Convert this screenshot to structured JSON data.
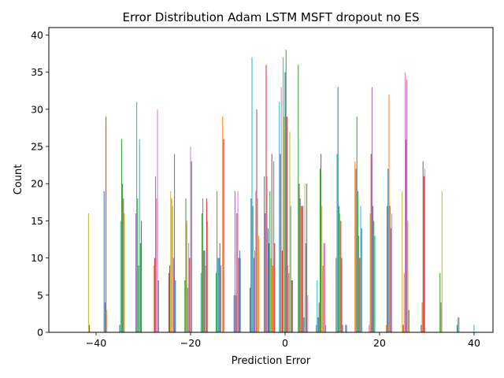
{
  "chart_data": {
    "type": "bar",
    "title": "Error Distribution  Adam LSTM MSFT dropout no ES",
    "xlabel": "Prediction Error",
    "ylabel": "Count",
    "xlim": [
      -50,
      44
    ],
    "ylim": [
      0,
      41
    ],
    "x_ticks": [
      -40,
      -20,
      0,
      20,
      40
    ],
    "x_tick_labels": [
      "−40",
      "−20",
      "0",
      "20",
      "40"
    ],
    "y_ticks": [
      0,
      5,
      10,
      15,
      20,
      25,
      30,
      35,
      40
    ],
    "y_tick_labels": [
      "0",
      "5",
      "10",
      "15",
      "20",
      "25",
      "30",
      "35",
      "40"
    ],
    "grid": false,
    "legend": "none",
    "bar_width": 0.16,
    "colors": [
      "#1f77b4",
      "#ff7f0e",
      "#2ca02c",
      "#d62728",
      "#9467bd",
      "#8c564b",
      "#e377c2",
      "#7f7f7f",
      "#bcbd22",
      "#17becf"
    ],
    "bars": [
      {
        "x": -41.6,
        "y": 16,
        "c": "#bcbd22"
      },
      {
        "x": -41.4,
        "y": 1,
        "c": "#d62728"
      },
      {
        "x": -38.3,
        "y": 19,
        "c": "#1f77b4"
      },
      {
        "x": -38.1,
        "y": 4,
        "c": "#7f7f7f"
      },
      {
        "x": -37.9,
        "y": 29,
        "c": "#8c564b"
      },
      {
        "x": -37.7,
        "y": 3,
        "c": "#bcbd22"
      },
      {
        "x": -35.0,
        "y": 1,
        "c": "#1f77b4"
      },
      {
        "x": -34.8,
        "y": 15,
        "c": "#17becf"
      },
      {
        "x": -34.6,
        "y": 26,
        "c": "#2ca02c"
      },
      {
        "x": -34.4,
        "y": 20,
        "c": "#2ca02c"
      },
      {
        "x": -34.2,
        "y": 18,
        "c": "#8c564b"
      },
      {
        "x": -34.0,
        "y": 16,
        "c": "#bcbd22"
      },
      {
        "x": -31.6,
        "y": 16,
        "c": "#9467bd"
      },
      {
        "x": -31.4,
        "y": 31,
        "c": "#17becf"
      },
      {
        "x": -31.2,
        "y": 18,
        "c": "#2ca02c"
      },
      {
        "x": -31.0,
        "y": 9,
        "c": "#7f7f7f"
      },
      {
        "x": -30.8,
        "y": 26,
        "c": "#17becf"
      },
      {
        "x": -30.6,
        "y": 12,
        "c": "#2ca02c"
      },
      {
        "x": -30.4,
        "y": 15,
        "c": "#1f77b4"
      },
      {
        "x": -27.8,
        "y": 9,
        "c": "#bcbd22"
      },
      {
        "x": -27.6,
        "y": 10,
        "c": "#d62728"
      },
      {
        "x": -27.4,
        "y": 21,
        "c": "#9467bd"
      },
      {
        "x": -27.2,
        "y": 18,
        "c": "#e377c2"
      },
      {
        "x": -27.0,
        "y": 30,
        "c": "#e377c2"
      },
      {
        "x": -26.8,
        "y": 7,
        "c": "#1f77b4"
      },
      {
        "x": -24.6,
        "y": 8,
        "c": "#8c564b"
      },
      {
        "x": -24.4,
        "y": 9,
        "c": "#d62728"
      },
      {
        "x": -24.2,
        "y": 19,
        "c": "#bcbd22"
      },
      {
        "x": -24.0,
        "y": 18,
        "c": "#ff7f0e"
      },
      {
        "x": -23.8,
        "y": 17,
        "c": "#bcbd22"
      },
      {
        "x": -23.6,
        "y": 10,
        "c": "#9467bd"
      },
      {
        "x": -23.4,
        "y": 24,
        "c": "#2ca02c"
      },
      {
        "x": -23.2,
        "y": 7,
        "c": "#1f77b4"
      },
      {
        "x": -21.2,
        "y": 7,
        "c": "#2ca02c"
      },
      {
        "x": -21.0,
        "y": 18,
        "c": "#2ca02c"
      },
      {
        "x": -20.8,
        "y": 15,
        "c": "#ff7f0e"
      },
      {
        "x": -20.6,
        "y": 6,
        "c": "#7f7f7f"
      },
      {
        "x": -20.4,
        "y": 12,
        "c": "#e377c2"
      },
      {
        "x": -20.2,
        "y": 10,
        "c": "#d62728"
      },
      {
        "x": -20.0,
        "y": 25,
        "c": "#e377c2"
      },
      {
        "x": -19.8,
        "y": 23,
        "c": "#1f77b4"
      },
      {
        "x": -17.8,
        "y": 8,
        "c": "#17becf"
      },
      {
        "x": -17.6,
        "y": 16,
        "c": "#2ca02c"
      },
      {
        "x": -17.4,
        "y": 18,
        "c": "#9467bd"
      },
      {
        "x": -17.2,
        "y": 11,
        "c": "#8c564b"
      },
      {
        "x": -17.0,
        "y": 11,
        "c": "#1f77b4"
      },
      {
        "x": -16.8,
        "y": 9,
        "c": "#bcbd22"
      },
      {
        "x": -16.6,
        "y": 18,
        "c": "#d62728"
      },
      {
        "x": -16.4,
        "y": 15,
        "c": "#ff7f0e"
      },
      {
        "x": -14.6,
        "y": 8,
        "c": "#2ca02c"
      },
      {
        "x": -14.4,
        "y": 19,
        "c": "#9467bd"
      },
      {
        "x": -14.2,
        "y": 10,
        "c": "#17becf"
      },
      {
        "x": -14.0,
        "y": 10,
        "c": "#1f77b4"
      },
      {
        "x": -13.8,
        "y": 12,
        "c": "#8c564b"
      },
      {
        "x": -13.6,
        "y": 9,
        "c": "#7f7f7f"
      },
      {
        "x": -13.2,
        "y": 29,
        "c": "#ff7f0e"
      },
      {
        "x": -13.0,
        "y": 26,
        "c": "#d62728"
      },
      {
        "x": -10.8,
        "y": 5,
        "c": "#1f77b4"
      },
      {
        "x": -10.6,
        "y": 19,
        "c": "#9467bd"
      },
      {
        "x": -10.4,
        "y": 5,
        "c": "#7f7f7f"
      },
      {
        "x": -10.2,
        "y": 16,
        "c": "#8c564b"
      },
      {
        "x": -10.0,
        "y": 19,
        "c": "#e377c2"
      },
      {
        "x": -9.8,
        "y": 10,
        "c": "#d62728"
      },
      {
        "x": -9.6,
        "y": 11,
        "c": "#1f77b4"
      },
      {
        "x": -9.4,
        "y": 10,
        "c": "#e377c2"
      },
      {
        "x": -7.4,
        "y": 6,
        "c": "#d62728"
      },
      {
        "x": -7.2,
        "y": 18,
        "c": "#1f77b4"
      },
      {
        "x": -7.0,
        "y": 37,
        "c": "#17becf"
      },
      {
        "x": -6.8,
        "y": 17,
        "c": "#2ca02c"
      },
      {
        "x": -6.6,
        "y": 10,
        "c": "#9467bd"
      },
      {
        "x": -6.4,
        "y": 11,
        "c": "#7f7f7f"
      },
      {
        "x": -6.2,
        "y": 19,
        "c": "#e377c2"
      },
      {
        "x": -6.0,
        "y": 30,
        "c": "#8c564b"
      },
      {
        "x": -5.8,
        "y": 18,
        "c": "#bcbd22"
      },
      {
        "x": -5.6,
        "y": 13,
        "c": "#ff7f0e"
      },
      {
        "x": -4.4,
        "y": 21,
        "c": "#2ca02c"
      },
      {
        "x": -4.2,
        "y": 16,
        "c": "#9467bd"
      },
      {
        "x": -4.0,
        "y": 36,
        "c": "#d62728"
      },
      {
        "x": -3.8,
        "y": 21,
        "c": "#e377c2"
      },
      {
        "x": -3.6,
        "y": 14,
        "c": "#1f77b4"
      },
      {
        "x": -3.4,
        "y": 12,
        "c": "#8c564b"
      },
      {
        "x": -3.2,
        "y": 19,
        "c": "#2ca02c"
      },
      {
        "x": -3.0,
        "y": 10,
        "c": "#bcbd22"
      },
      {
        "x": -2.8,
        "y": 24,
        "c": "#8c564b"
      },
      {
        "x": -2.6,
        "y": 9,
        "c": "#ff7f0e"
      },
      {
        "x": -2.4,
        "y": 23,
        "c": "#9467bd"
      },
      {
        "x": -2.2,
        "y": 12,
        "c": "#d62728"
      },
      {
        "x": -1.2,
        "y": 31,
        "c": "#17becf"
      },
      {
        "x": -1.0,
        "y": 24,
        "c": "#8c564b"
      },
      {
        "x": -0.8,
        "y": 33,
        "c": "#e377c2"
      },
      {
        "x": -0.6,
        "y": 11,
        "c": "#d62728"
      },
      {
        "x": -0.4,
        "y": 37,
        "c": "#17becf"
      },
      {
        "x": -0.2,
        "y": 29,
        "c": "#bcbd22"
      },
      {
        "x": 0.0,
        "y": 35,
        "c": "#1f77b4"
      },
      {
        "x": 0.2,
        "y": 38,
        "c": "#2ca02c"
      },
      {
        "x": 0.4,
        "y": 29,
        "c": "#d62728"
      },
      {
        "x": 0.6,
        "y": 9,
        "c": "#e377c2"
      },
      {
        "x": 0.8,
        "y": 8,
        "c": "#7f7f7f"
      },
      {
        "x": 1.0,
        "y": 27,
        "c": "#bcbd22"
      },
      {
        "x": 1.2,
        "y": 17,
        "c": "#17becf"
      },
      {
        "x": 1.4,
        "y": 7,
        "c": "#8c564b"
      },
      {
        "x": 1.6,
        "y": 7,
        "c": "#9467bd"
      },
      {
        "x": 2.8,
        "y": 36,
        "c": "#2ca02c"
      },
      {
        "x": 3.0,
        "y": 20,
        "c": "#8c564b"
      },
      {
        "x": 3.2,
        "y": 18,
        "c": "#1f77b4"
      },
      {
        "x": 3.4,
        "y": 17,
        "c": "#ff7f0e"
      },
      {
        "x": 3.6,
        "y": 17,
        "c": "#d62728"
      },
      {
        "x": 3.8,
        "y": 17,
        "c": "#9467bd"
      },
      {
        "x": 4.0,
        "y": 2,
        "c": "#1f77b4"
      },
      {
        "x": 4.2,
        "y": 20,
        "c": "#bcbd22"
      },
      {
        "x": 4.4,
        "y": 12,
        "c": "#7f7f7f"
      },
      {
        "x": 4.6,
        "y": 20,
        "c": "#2ca02c"
      },
      {
        "x": 4.8,
        "y": 5,
        "c": "#e377c2"
      },
      {
        "x": 6.6,
        "y": 1,
        "c": "#9467bd"
      },
      {
        "x": 6.8,
        "y": 7,
        "c": "#17becf"
      },
      {
        "x": 7.0,
        "y": 2,
        "c": "#1f77b4"
      },
      {
        "x": 7.2,
        "y": 4,
        "c": "#d62728"
      },
      {
        "x": 7.4,
        "y": 22,
        "c": "#2ca02c"
      },
      {
        "x": 7.6,
        "y": 24,
        "c": "#8c564b"
      },
      {
        "x": 7.8,
        "y": 17,
        "c": "#bcbd22"
      },
      {
        "x": 8.0,
        "y": 9,
        "c": "#ff7f0e"
      },
      {
        "x": 8.2,
        "y": 12,
        "c": "#9467bd"
      },
      {
        "x": 8.4,
        "y": 12,
        "c": "#e377c2"
      },
      {
        "x": 8.6,
        "y": 1,
        "c": "#7f7f7f"
      },
      {
        "x": 10.8,
        "y": 10,
        "c": "#7f7f7f"
      },
      {
        "x": 11.0,
        "y": 24,
        "c": "#17becf"
      },
      {
        "x": 11.2,
        "y": 33,
        "c": "#1f77b4"
      },
      {
        "x": 11.4,
        "y": 17,
        "c": "#2ca02c"
      },
      {
        "x": 11.6,
        "y": 16,
        "c": "#ff7f0e"
      },
      {
        "x": 11.8,
        "y": 15,
        "c": "#d62728"
      },
      {
        "x": 12.0,
        "y": 10,
        "c": "#8c564b"
      },
      {
        "x": 12.2,
        "y": 1,
        "c": "#9467bd"
      },
      {
        "x": 12.8,
        "y": 1,
        "c": "#7f7f7f"
      },
      {
        "x": 13.0,
        "y": 1,
        "c": "#1f77b4"
      },
      {
        "x": 14.8,
        "y": 23,
        "c": "#ff7f0e"
      },
      {
        "x": 15.0,
        "y": 22,
        "c": "#9467bd"
      },
      {
        "x": 15.2,
        "y": 29,
        "c": "#2ca02c"
      },
      {
        "x": 15.4,
        "y": 19,
        "c": "#2ca02c"
      },
      {
        "x": 15.6,
        "y": 13,
        "c": "#7f7f7f"
      },
      {
        "x": 15.8,
        "y": 10,
        "c": "#d62728"
      },
      {
        "x": 16.0,
        "y": 17,
        "c": "#17becf"
      },
      {
        "x": 16.2,
        "y": 14,
        "c": "#1f77b4"
      },
      {
        "x": 17.8,
        "y": 1,
        "c": "#e377c2"
      },
      {
        "x": 18.0,
        "y": 16,
        "c": "#bcbd22"
      },
      {
        "x": 18.2,
        "y": 24,
        "c": "#d62728"
      },
      {
        "x": 18.4,
        "y": 33,
        "c": "#9467bd"
      },
      {
        "x": 18.6,
        "y": 17,
        "c": "#8c564b"
      },
      {
        "x": 18.8,
        "y": 15,
        "c": "#2ca02c"
      },
      {
        "x": 19.0,
        "y": 13,
        "c": "#17becf"
      },
      {
        "x": 21.4,
        "y": 1,
        "c": "#ff7f0e"
      },
      {
        "x": 21.6,
        "y": 17,
        "c": "#2ca02c"
      },
      {
        "x": 21.8,
        "y": 22,
        "c": "#1f77b4"
      },
      {
        "x": 22.0,
        "y": 32,
        "c": "#ff7f0e"
      },
      {
        "x": 22.2,
        "y": 17,
        "c": "#8c564b"
      },
      {
        "x": 22.4,
        "y": 14,
        "c": "#9467bd"
      },
      {
        "x": 22.6,
        "y": 16,
        "c": "#e377c2"
      },
      {
        "x": 24.8,
        "y": 19,
        "c": "#bcbd22"
      },
      {
        "x": 25.0,
        "y": 1,
        "c": "#d62728"
      },
      {
        "x": 25.2,
        "y": 8,
        "c": "#ff7f0e"
      },
      {
        "x": 25.4,
        "y": 35,
        "c": "#e377c2"
      },
      {
        "x": 25.6,
        "y": 26,
        "c": "#1f77b4"
      },
      {
        "x": 25.8,
        "y": 34,
        "c": "#9467bd"
      },
      {
        "x": 26.0,
        "y": 15,
        "c": "#bcbd22"
      },
      {
        "x": 26.2,
        "y": 3,
        "c": "#d62728"
      },
      {
        "x": 28.8,
        "y": 1,
        "c": "#8c564b"
      },
      {
        "x": 29.0,
        "y": 4,
        "c": "#ff7f0e"
      },
      {
        "x": 29.2,
        "y": 23,
        "c": "#8c564b"
      },
      {
        "x": 29.4,
        "y": 21,
        "c": "#d62728"
      },
      {
        "x": 29.6,
        "y": 22,
        "c": "#e377c2"
      },
      {
        "x": 32.8,
        "y": 8,
        "c": "#2ca02c"
      },
      {
        "x": 33.0,
        "y": 4,
        "c": "#7f7f7f"
      },
      {
        "x": 33.2,
        "y": 19,
        "c": "#bcbd22"
      },
      {
        "x": 36.4,
        "y": 1,
        "c": "#1f77b4"
      },
      {
        "x": 36.6,
        "y": 2,
        "c": "#17becf"
      },
      {
        "x": 36.8,
        "y": 2,
        "c": "#7f7f7f"
      },
      {
        "x": 40.0,
        "y": 1,
        "c": "#17becf"
      }
    ]
  }
}
